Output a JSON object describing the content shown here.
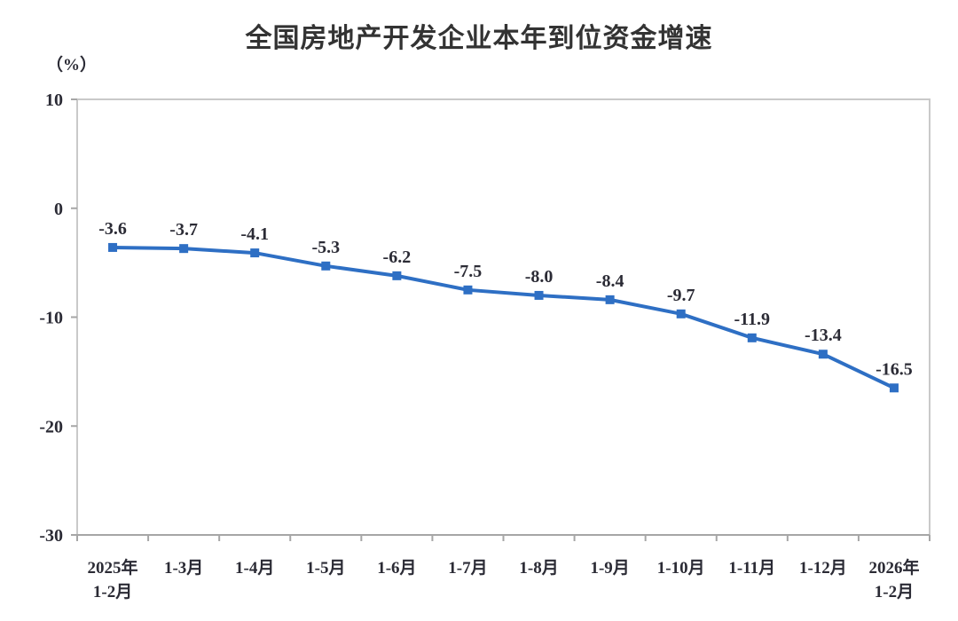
{
  "title": "全国房地产开发企业本年到位资金增速",
  "unit_label": "（%）",
  "colors": {
    "line": "#2e6fc4",
    "marker": "#2e6fc4",
    "plot_border": "#c9c9c9",
    "axis": "#a6a6a6",
    "text": "#2b2b35",
    "title_text": "#333333",
    "background": "#ffffff"
  },
  "chart_data": {
    "type": "line",
    "title": "全国房地产开发企业本年到位资金增速",
    "xlabel": "",
    "ylabel": "（%）",
    "categories": [
      "2025年\n1-2月",
      "1-3月",
      "1-4月",
      "1-5月",
      "1-6月",
      "1-7月",
      "1-8月",
      "1-9月",
      "1-10月",
      "1-11月",
      "1-12月",
      "2026年\n1-2月"
    ],
    "values": [
      -3.6,
      -3.7,
      -4.1,
      -5.3,
      -6.2,
      -7.5,
      -8.0,
      -8.4,
      -9.7,
      -11.9,
      -13.4,
      -16.5
    ],
    "value_labels": [
      "-3.6",
      "-3.7",
      "-4.1",
      "-5.3",
      "-6.2",
      "-7.5",
      "-8.0",
      "-8.4",
      "-9.7",
      "-11.9",
      "-13.4",
      "-16.5"
    ],
    "ylim": [
      -30,
      10
    ],
    "yticks": [
      10,
      0,
      -10,
      -20,
      -30
    ],
    "grid": false,
    "legend_position": "none",
    "marker_shape": "square",
    "series_name": "全国房地产开发企业本年到位资金增速"
  }
}
